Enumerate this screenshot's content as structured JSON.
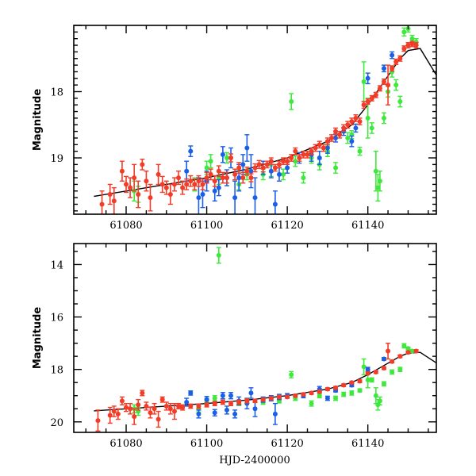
{
  "chart_data": [
    {
      "type": "scatter",
      "panel": "top",
      "title": "",
      "xlabel": "",
      "ylabel": "Magnitude",
      "xlim": [
        61067,
        61157
      ],
      "ylim": [
        19.85,
        17.0
      ],
      "y_inverted": true,
      "x_ticks": [
        61080,
        61100,
        61120,
        61140
      ],
      "x_tick_labels": [
        "61080",
        "61100",
        "61120",
        "61140"
      ],
      "y_ticks": [
        18,
        19
      ],
      "y_tick_labels": [
        "18",
        "19"
      ],
      "grid": false,
      "legend": "none",
      "model_curve": {
        "name": "model",
        "color": "#000000",
        "x": [
          61072,
          61080,
          61090,
          61100,
          61110,
          61120,
          61130,
          61136,
          61140,
          61144,
          61148,
          61150,
          61153,
          61157
        ],
        "y": [
          19.58,
          19.5,
          19.4,
          19.3,
          19.17,
          19.0,
          18.75,
          18.5,
          18.2,
          17.85,
          17.5,
          17.38,
          17.35,
          17.75
        ]
      },
      "series": [
        {
          "name": "red",
          "color": "#f23c28",
          "x": [
            61074,
            61076,
            61077,
            61079,
            61080,
            61081,
            61082,
            61083,
            61084,
            61085,
            61086,
            61088,
            61089,
            61090,
            61091,
            61092,
            61093,
            61094,
            61095,
            61096,
            61097,
            61098,
            61099,
            61100,
            61101,
            61102,
            61103,
            61104,
            61105,
            61106,
            61107,
            61108,
            61109,
            61110,
            61111,
            61112,
            61113,
            61114,
            61115,
            61116,
            61117,
            61118,
            61119,
            61120,
            61121,
            61122,
            61123,
            61124,
            61125,
            61126,
            61127,
            61128,
            61129,
            61130,
            61131,
            61132,
            61133,
            61134,
            61135,
            61136,
            61137,
            61138,
            61139,
            61140,
            61141,
            61142,
            61143,
            61144,
            61145,
            61146,
            61147,
            61148,
            61149,
            61150,
            61151,
            61152
          ],
          "y": [
            19.7,
            19.55,
            19.65,
            19.2,
            19.4,
            19.45,
            19.3,
            19.55,
            19.1,
            19.35,
            19.6,
            19.25,
            19.4,
            19.45,
            19.55,
            19.4,
            19.3,
            19.45,
            19.4,
            19.35,
            19.4,
            19.35,
            19.4,
            19.3,
            19.25,
            19.35,
            19.2,
            19.3,
            19.3,
            19.0,
            19.25,
            19.15,
            19.3,
            19.2,
            19.3,
            19.15,
            19.1,
            19.15,
            19.1,
            19.05,
            19.15,
            19.1,
            19.05,
            19.05,
            19.0,
            18.9,
            19.0,
            18.95,
            18.95,
            18.9,
            18.85,
            18.8,
            18.85,
            18.75,
            18.7,
            18.6,
            18.65,
            18.55,
            18.5,
            18.45,
            18.4,
            18.45,
            18.2,
            18.15,
            18.1,
            18.05,
            17.95,
            17.85,
            17.9,
            17.65,
            17.55,
            17.5,
            17.35,
            17.3,
            17.28,
            17.3
          ],
          "err": [
            0.2,
            0.15,
            0.2,
            0.15,
            0.12,
            0.15,
            0.2,
            0.2,
            0.08,
            0.15,
            0.2,
            0.15,
            0.12,
            0.1,
            0.15,
            0.1,
            0.1,
            0.1,
            0.08,
            0.08,
            0.08,
            0.08,
            0.08,
            0.08,
            0.08,
            0.08,
            0.08,
            0.08,
            0.08,
            0.06,
            0.08,
            0.08,
            0.08,
            0.06,
            0.06,
            0.06,
            0.06,
            0.06,
            0.05,
            0.05,
            0.05,
            0.05,
            0.05,
            0.05,
            0.05,
            0.05,
            0.05,
            0.05,
            0.05,
            0.05,
            0.05,
            0.05,
            0.05,
            0.05,
            0.05,
            0.05,
            0.05,
            0.05,
            0.05,
            0.05,
            0.05,
            0.05,
            0.05,
            0.04,
            0.04,
            0.04,
            0.04,
            0.04,
            0.3,
            0.04,
            0.04,
            0.04,
            0.04,
            0.04,
            0.04,
            0.04
          ]
        },
        {
          "name": "green",
          "color": "#3fe83c",
          "x": [
            61082,
            61083,
            61097,
            61100,
            61101,
            61103,
            61105,
            61108,
            61110,
            61114,
            61116,
            61119,
            61121,
            61122,
            61124,
            61126,
            61128,
            61130,
            61132,
            61135,
            61136,
            61138,
            61139,
            61140,
            61141,
            61142,
            61142.5,
            61143,
            61144,
            61145,
            61146,
            61147,
            61148,
            61149,
            61150,
            61151,
            61152
          ],
          "y": [
            19.5,
            19.55,
            19.4,
            19.15,
            19.05,
            19.3,
            19.0,
            19.4,
            19.25,
            19.25,
            19.2,
            19.25,
            18.15,
            19.05,
            19.3,
            19.0,
            19.1,
            18.9,
            19.15,
            18.7,
            18.65,
            18.9,
            17.85,
            18.4,
            18.55,
            19.2,
            19.45,
            19.35,
            18.4,
            18.0,
            17.7,
            17.9,
            18.15,
            17.1,
            17.05,
            17.2,
            17.25
          ],
          "err": [
            0.15,
            0.12,
            0.1,
            0.1,
            0.1,
            0.1,
            0.08,
            0.08,
            0.08,
            0.08,
            0.08,
            0.08,
            0.12,
            0.08,
            0.08,
            0.08,
            0.08,
            0.08,
            0.08,
            0.08,
            0.06,
            0.06,
            0.3,
            0.3,
            0.08,
            0.3,
            0.2,
            0.15,
            0.08,
            0.08,
            0.08,
            0.08,
            0.08,
            0.06,
            0.05,
            0.05,
            0.05
          ]
        },
        {
          "name": "blue",
          "color": "#1a5fe6",
          "x": [
            61095,
            61096,
            61098,
            61099,
            61100,
            61102,
            61103,
            61104,
            61105,
            61106,
            61107,
            61108,
            61109,
            61110,
            61111,
            61112,
            61114,
            61116,
            61117,
            61118,
            61120,
            61123,
            61126,
            61128,
            61130,
            61132,
            61134,
            61136,
            61137,
            61140,
            61144,
            61146
          ],
          "y": [
            19.2,
            18.9,
            19.6,
            19.55,
            19.35,
            19.5,
            19.45,
            18.95,
            19.3,
            19.0,
            19.6,
            19.3,
            19.1,
            18.85,
            19.2,
            19.6,
            19.15,
            19.2,
            19.7,
            19.25,
            19.15,
            19.0,
            18.95,
            19.0,
            18.85,
            18.7,
            18.6,
            18.75,
            18.55,
            17.8,
            17.65,
            17.45
          ],
          "err": [
            0.15,
            0.08,
            0.3,
            0.2,
            0.15,
            0.15,
            0.12,
            0.12,
            0.12,
            0.15,
            0.25,
            0.2,
            0.15,
            0.2,
            0.25,
            0.3,
            0.1,
            0.1,
            0.2,
            0.1,
            0.08,
            0.08,
            0.1,
            0.1,
            0.08,
            0.06,
            0.06,
            0.08,
            0.06,
            0.08,
            0.05,
            0.05
          ]
        }
      ]
    },
    {
      "type": "scatter",
      "panel": "bottom",
      "title": "",
      "xlabel": "HJD-2400000",
      "ylabel": "Magnitude",
      "xlim": [
        61067,
        61157
      ],
      "ylim": [
        20.4,
        13.2
      ],
      "y_inverted": true,
      "x_ticks": [
        61080,
        61100,
        61120,
        61140
      ],
      "x_tick_labels": [
        "61080",
        "61100",
        "61120",
        "61140"
      ],
      "y_ticks": [
        14,
        16,
        18,
        20
      ],
      "y_tick_labels": [
        "14",
        "16",
        "18",
        "20"
      ],
      "grid": false,
      "legend": "none",
      "model_curve": {
        "name": "model",
        "color": "#000000",
        "x": [
          61072,
          61080,
          61090,
          61100,
          61110,
          61120,
          61130,
          61136,
          61140,
          61144,
          61148,
          61150,
          61153,
          61157
        ],
        "y": [
          19.58,
          19.5,
          19.4,
          19.3,
          19.17,
          19.0,
          18.75,
          18.5,
          18.2,
          17.85,
          17.5,
          17.38,
          17.35,
          17.75
        ]
      },
      "series": [
        {
          "name": "red",
          "color": "#f23c28",
          "x": [
            61073,
            61076,
            61077,
            61078,
            61079,
            61080,
            61081,
            61082,
            61083,
            61084,
            61085,
            61086,
            61087,
            61088,
            61089,
            61090,
            61091,
            61092,
            61093,
            61094,
            61096,
            61098,
            61100,
            61102,
            61104,
            61106,
            61108,
            61110,
            61112,
            61114,
            61116,
            61118,
            61120,
            61122,
            61124,
            61126,
            61128,
            61130,
            61132,
            61134,
            61136,
            61138,
            61140,
            61142,
            61144,
            61145,
            61146,
            61148,
            61150,
            61152
          ],
          "y": [
            19.95,
            19.75,
            19.6,
            19.7,
            19.2,
            19.45,
            19.5,
            19.8,
            19.35,
            18.9,
            19.4,
            19.65,
            19.5,
            19.9,
            19.15,
            19.4,
            19.5,
            19.6,
            19.4,
            19.45,
            19.4,
            19.4,
            19.35,
            19.3,
            19.25,
            19.3,
            19.25,
            19.2,
            19.2,
            19.15,
            19.1,
            19.05,
            19.05,
            19.0,
            18.95,
            18.9,
            18.85,
            18.75,
            18.7,
            18.6,
            18.5,
            18.45,
            18.15,
            18.1,
            17.95,
            17.3,
            17.7,
            17.5,
            17.35,
            17.3
          ],
          "err": [
            0.4,
            0.3,
            0.2,
            0.2,
            0.15,
            0.15,
            0.2,
            0.3,
            0.2,
            0.1,
            0.15,
            0.2,
            0.2,
            0.3,
            0.1,
            0.15,
            0.2,
            0.3,
            0.1,
            0.1,
            0.08,
            0.08,
            0.08,
            0.08,
            0.08,
            0.08,
            0.08,
            0.08,
            0.06,
            0.06,
            0.06,
            0.06,
            0.05,
            0.05,
            0.05,
            0.05,
            0.05,
            0.05,
            0.05,
            0.05,
            0.05,
            0.05,
            0.05,
            0.05,
            0.05,
            0.3,
            0.05,
            0.05,
            0.05,
            0.05
          ]
        },
        {
          "name": "green",
          "color": "#3fe83c",
          "x": [
            61082,
            61083,
            61098,
            61100,
            61102,
            61103,
            61108,
            61110,
            61114,
            61118,
            61121,
            61122,
            61126,
            61128,
            61132,
            61134,
            61136,
            61138,
            61139,
            61140,
            61141,
            61142,
            61142.5,
            61143,
            61144,
            61146,
            61148,
            61149,
            61150,
            61151
          ],
          "y": [
            19.5,
            19.6,
            19.5,
            19.2,
            19.1,
            13.65,
            19.3,
            19.2,
            19.25,
            19.2,
            18.2,
            19.1,
            19.3,
            19.0,
            19.1,
            18.95,
            18.9,
            18.8,
            17.9,
            18.4,
            18.4,
            19.0,
            19.35,
            19.2,
            18.55,
            18.1,
            18.0,
            17.1,
            17.2,
            17.3
          ],
          "err": [
            0.15,
            0.15,
            0.12,
            0.1,
            0.1,
            0.3,
            0.08,
            0.08,
            0.08,
            0.08,
            0.12,
            0.08,
            0.1,
            0.08,
            0.08,
            0.08,
            0.08,
            0.06,
            0.3,
            0.3,
            0.08,
            0.3,
            0.2,
            0.15,
            0.08,
            0.08,
            0.08,
            0.08,
            0.05,
            0.05
          ]
        },
        {
          "name": "blue",
          "color": "#1a5fe6",
          "x": [
            61095,
            61096,
            61098,
            61100,
            61102,
            61104,
            61105,
            61106,
            61107,
            61108,
            61110,
            61111,
            61112,
            61114,
            61116,
            61117,
            61118,
            61120,
            61124,
            61128,
            61130,
            61132,
            61136,
            61140,
            61144
          ],
          "y": [
            19.25,
            18.9,
            19.7,
            19.15,
            19.65,
            19.0,
            19.55,
            19.0,
            19.7,
            19.2,
            19.3,
            18.9,
            19.5,
            19.15,
            19.1,
            19.7,
            19.05,
            19.0,
            19.0,
            18.75,
            19.1,
            18.8,
            18.6,
            18.0,
            17.6
          ],
          "err": [
            0.15,
            0.08,
            0.15,
            0.12,
            0.12,
            0.12,
            0.15,
            0.12,
            0.15,
            0.15,
            0.2,
            0.2,
            0.3,
            0.1,
            0.1,
            0.4,
            0.1,
            0.08,
            0.08,
            0.1,
            0.08,
            0.06,
            0.06,
            0.08,
            0.05
          ]
        }
      ]
    }
  ]
}
